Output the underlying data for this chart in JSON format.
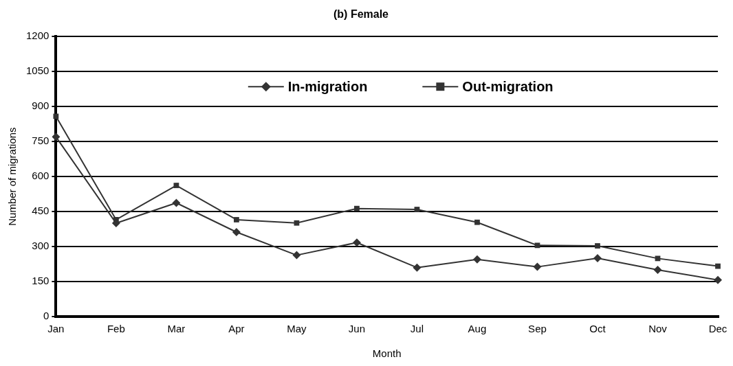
{
  "chart_data": {
    "type": "line",
    "title": "(b) Female",
    "xlabel": "Month",
    "ylabel": "Number of migrations",
    "categories": [
      "Jan",
      "Feb",
      "Mar",
      "Apr",
      "May",
      "Jun",
      "Jul",
      "Aug",
      "Sep",
      "Oct",
      "Nov",
      "Dec"
    ],
    "series": [
      {
        "name": "In-migration",
        "color": "#333333",
        "marker": "diamond",
        "values": [
          770,
          400,
          487,
          362,
          263,
          317,
          210,
          245,
          213,
          250,
          200,
          157
        ]
      },
      {
        "name": "Out-migration",
        "color": "#333333",
        "marker": "square",
        "values": [
          858,
          415,
          562,
          415,
          401,
          463,
          459,
          404,
          305,
          303,
          249,
          216
        ]
      }
    ],
    "ylim": [
      0,
      1200
    ],
    "yticks": [
      0,
      150,
      300,
      450,
      600,
      750,
      900,
      1050,
      1200
    ],
    "grid": "y",
    "legend": "top",
    "line_style": "solid"
  }
}
